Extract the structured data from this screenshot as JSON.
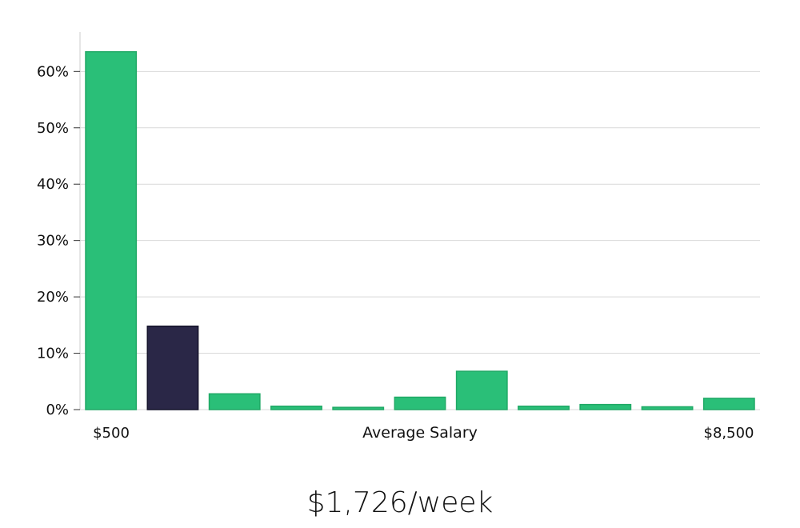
{
  "chart_data": {
    "type": "bar",
    "title": "",
    "xlabel": "Average Salary",
    "ylabel": "",
    "ylim": [
      0,
      67
    ],
    "yticks": [
      0,
      10,
      20,
      30,
      40,
      50,
      60
    ],
    "ytick_labels": [
      "0%",
      "10%",
      "20%",
      "30%",
      "40%",
      "50%",
      "60%"
    ],
    "x_range_labels": [
      "$500",
      "$8,500"
    ],
    "grid": "horizontal",
    "values": [
      63.5,
      14.8,
      2.8,
      0.6,
      0.4,
      2.2,
      6.8,
      0.6,
      0.9,
      0.5,
      2.0
    ],
    "highlight_index": 1,
    "colors": {
      "bar": "#2abf78",
      "bar_edge": "#20a966",
      "highlight": "#2a2747",
      "highlight_edge": "#15132b",
      "grid": "#d9d9d9",
      "axis": "#cccccc"
    }
  },
  "caption": "$1,726/week"
}
